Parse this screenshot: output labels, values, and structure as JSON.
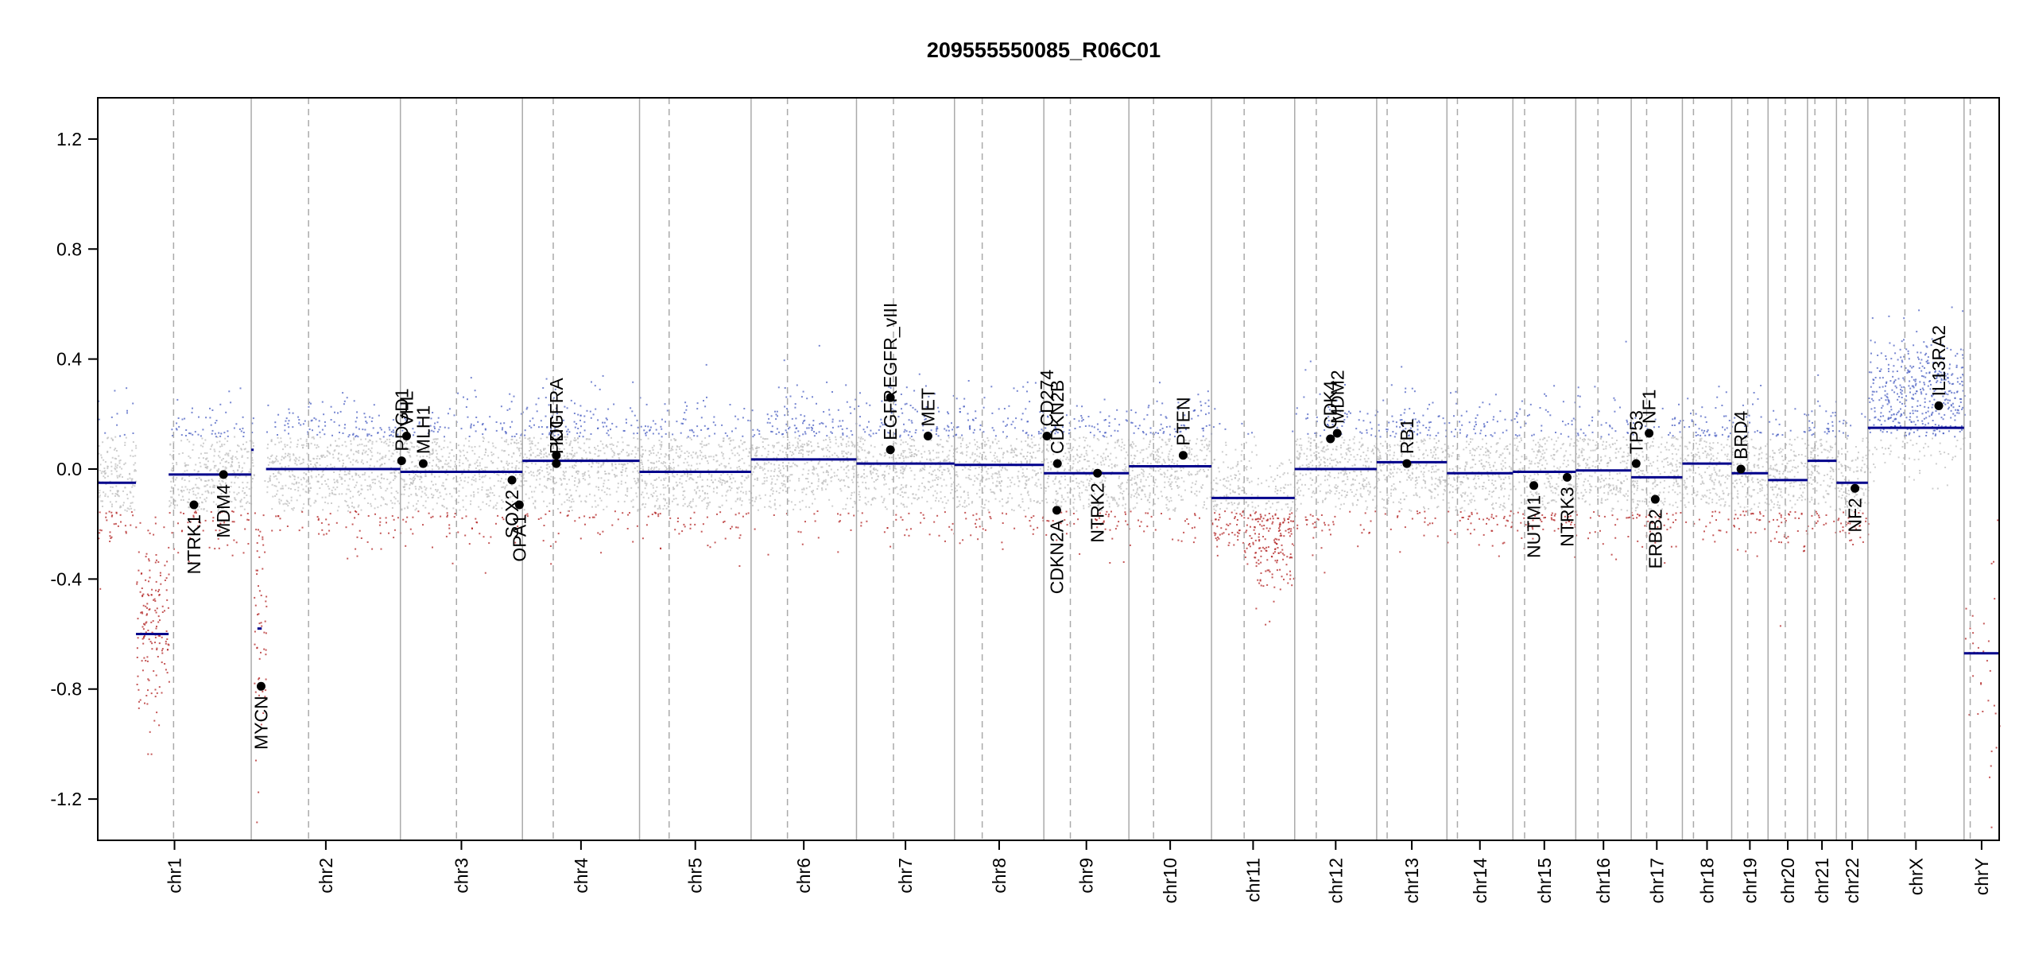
{
  "chart_data": {
    "type": "scatter",
    "title": "209555550085_R06C01",
    "xlabel": "",
    "ylabel": "",
    "ylim": [
      -1.35,
      1.35
    ],
    "yticks": [
      -1.2,
      -0.8,
      -0.4,
      0.0,
      0.4,
      0.8,
      1.2
    ],
    "ytick_labels": [
      "-1.2",
      "-0.8",
      "-0.4",
      "0.0",
      "0.4",
      "0.8",
      "1.2"
    ],
    "x_unit": "genome position (Mb)",
    "grid": false,
    "colors": {
      "gain": "#4a5fc1",
      "loss": "#b22222",
      "neutral": "#bdbdbd",
      "segment": "#00008b",
      "gene": "#000000",
      "boundary": "#aaaaaa"
    },
    "chromosomes": [
      {
        "name": "chr1",
        "length": 249,
        "centromere": 123
      },
      {
        "name": "chr2",
        "length": 242,
        "centromere": 93
      },
      {
        "name": "chr3",
        "length": 198,
        "centromere": 91
      },
      {
        "name": "chr4",
        "length": 190,
        "centromere": 50
      },
      {
        "name": "chr5",
        "length": 181,
        "centromere": 48
      },
      {
        "name": "chr6",
        "length": 171,
        "centromere": 59
      },
      {
        "name": "chr7",
        "length": 159,
        "centromere": 60
      },
      {
        "name": "chr8",
        "length": 145,
        "centromere": 45
      },
      {
        "name": "chr9",
        "length": 138,
        "centromere": 43
      },
      {
        "name": "chr10",
        "length": 134,
        "centromere": 40
      },
      {
        "name": "chr11",
        "length": 135,
        "centromere": 53
      },
      {
        "name": "chr12",
        "length": 133,
        "centromere": 35
      },
      {
        "name": "chr13",
        "length": 114,
        "centromere": 17
      },
      {
        "name": "chr14",
        "length": 107,
        "centromere": 17
      },
      {
        "name": "chr15",
        "length": 102,
        "centromere": 19
      },
      {
        "name": "chr16",
        "length": 90,
        "centromere": 36
      },
      {
        "name": "chr17",
        "length": 83,
        "centromere": 25
      },
      {
        "name": "chr18",
        "length": 80,
        "centromere": 18
      },
      {
        "name": "chr19",
        "length": 59,
        "centromere": 26
      },
      {
        "name": "chr20",
        "length": 64,
        "centromere": 28
      },
      {
        "name": "chr21",
        "length": 47,
        "centromere": 12
      },
      {
        "name": "chr22",
        "length": 51,
        "centromere": 15
      },
      {
        "name": "chrX",
        "length": 156,
        "centromere": 60
      },
      {
        "name": "chrY",
        "length": 57,
        "centromere": 10
      }
    ],
    "segments": [
      {
        "chr": "chr1",
        "start": 0,
        "end": 62,
        "value": -0.05
      },
      {
        "chr": "chr1",
        "start": 62,
        "end": 115,
        "value": -0.6
      },
      {
        "chr": "chr1",
        "start": 115,
        "end": 249,
        "value": -0.02
      },
      {
        "chr": "chr2",
        "start": 0,
        "end": 4,
        "value": 0.07
      },
      {
        "chr": "chr2",
        "start": 10,
        "end": 17,
        "value": -0.58
      },
      {
        "chr": "chr2",
        "start": 24,
        "end": 242,
        "value": 0.0
      },
      {
        "chr": "chr3",
        "start": 0,
        "end": 198,
        "value": -0.01
      },
      {
        "chr": "chr4",
        "start": 0,
        "end": 190,
        "value": 0.03
      },
      {
        "chr": "chr5",
        "start": 0,
        "end": 181,
        "value": -0.01
      },
      {
        "chr": "chr6",
        "start": 0,
        "end": 171,
        "value": 0.035
      },
      {
        "chr": "chr7",
        "start": 0,
        "end": 159,
        "value": 0.02
      },
      {
        "chr": "chr8",
        "start": 0,
        "end": 145,
        "value": 0.015
      },
      {
        "chr": "chr9",
        "start": 0,
        "end": 138,
        "value": -0.015
      },
      {
        "chr": "chr10",
        "start": 0,
        "end": 134,
        "value": 0.01
      },
      {
        "chr": "chr11",
        "start": 0,
        "end": 135,
        "value": -0.105
      },
      {
        "chr": "chr12",
        "start": 0,
        "end": 133,
        "value": 0.0
      },
      {
        "chr": "chr13",
        "start": 0,
        "end": 114,
        "value": 0.025
      },
      {
        "chr": "chr14",
        "start": 0,
        "end": 107,
        "value": -0.015
      },
      {
        "chr": "chr15",
        "start": 0,
        "end": 102,
        "value": -0.01
      },
      {
        "chr": "chr16",
        "start": 0,
        "end": 90,
        "value": -0.005
      },
      {
        "chr": "chr17",
        "start": 0,
        "end": 83,
        "value": -0.03
      },
      {
        "chr": "chr18",
        "start": 0,
        "end": 80,
        "value": 0.02
      },
      {
        "chr": "chr19",
        "start": 0,
        "end": 59,
        "value": -0.015
      },
      {
        "chr": "chr20",
        "start": 0,
        "end": 64,
        "value": -0.04
      },
      {
        "chr": "chr21",
        "start": 0,
        "end": 47,
        "value": 0.03
      },
      {
        "chr": "chr22",
        "start": 0,
        "end": 51,
        "value": -0.05
      },
      {
        "chr": "chrX",
        "start": 0,
        "end": 156,
        "value": 0.15
      },
      {
        "chr": "chrY",
        "start": 0,
        "end": 57,
        "value": -0.67
      }
    ],
    "genes": [
      {
        "name": "NTRK1",
        "chr": "chr1",
        "pos": 156,
        "value": -0.13,
        "label_side": "below"
      },
      {
        "name": "MDM4",
        "chr": "chr1",
        "pos": 204,
        "value": -0.02,
        "label_side": "below"
      },
      {
        "name": "MYCN",
        "chr": "chr2",
        "pos": 16,
        "value": -0.79,
        "label_side": "below"
      },
      {
        "name": "PDGD1",
        "chr": "chr3",
        "pos": 2,
        "value": 0.03,
        "label_side": "above"
      },
      {
        "name": "VHL",
        "chr": "chr3",
        "pos": 10,
        "value": 0.12,
        "label_side": "above"
      },
      {
        "name": "MLH1",
        "chr": "chr3",
        "pos": 37,
        "value": 0.02,
        "label_side": "above"
      },
      {
        "name": "SOX2",
        "chr": "chr3",
        "pos": 181,
        "value": -0.04,
        "label_side": "below"
      },
      {
        "name": "OPA1",
        "chr": "chr3",
        "pos": 193,
        "value": -0.13,
        "label_side": "below"
      },
      {
        "name": "KIT",
        "chr": "chr4",
        "pos": 55,
        "value": 0.05,
        "label_side": "above"
      },
      {
        "name": "PDGFRA",
        "chr": "chr4",
        "pos": 55,
        "value": 0.02,
        "label_side": "above"
      },
      {
        "name": "EGFR",
        "chr": "chr7",
        "pos": 55,
        "value": 0.07,
        "label_side": "above"
      },
      {
        "name": "EGFR_vIII",
        "chr": "chr7",
        "pos": 55,
        "value": 0.26,
        "label_side": "above"
      },
      {
        "name": "MET",
        "chr": "chr7",
        "pos": 116,
        "value": 0.12,
        "label_side": "above"
      },
      {
        "name": "CD274",
        "chr": "chr9",
        "pos": 5,
        "value": 0.12,
        "label_side": "above"
      },
      {
        "name": "CDKN2B",
        "chr": "chr9",
        "pos": 22,
        "value": 0.02,
        "label_side": "above"
      },
      {
        "name": "CDKN2A",
        "chr": "chr9",
        "pos": 21,
        "value": -0.15,
        "label_side": "below"
      },
      {
        "name": "NTRK2",
        "chr": "chr9",
        "pos": 87,
        "value": -0.015,
        "label_side": "below"
      },
      {
        "name": "PTEN",
        "chr": "chr10",
        "pos": 88,
        "value": 0.05,
        "label_side": "above"
      },
      {
        "name": "CDK4",
        "chr": "chr12",
        "pos": 58,
        "value": 0.11,
        "label_side": "above"
      },
      {
        "name": "MDM2",
        "chr": "chr12",
        "pos": 69,
        "value": 0.13,
        "label_side": "above"
      },
      {
        "name": "RB1",
        "chr": "chr13",
        "pos": 49,
        "value": 0.02,
        "label_side": "above"
      },
      {
        "name": "NUTM1",
        "chr": "chr15",
        "pos": 34,
        "value": -0.06,
        "label_side": "below"
      },
      {
        "name": "NTRK3",
        "chr": "chr15",
        "pos": 88,
        "value": -0.03,
        "label_side": "below"
      },
      {
        "name": "TP53",
        "chr": "chr17",
        "pos": 8,
        "value": 0.02,
        "label_side": "above"
      },
      {
        "name": "NF1",
        "chr": "chr17",
        "pos": 29,
        "value": 0.13,
        "label_side": "above"
      },
      {
        "name": "ERBB2",
        "chr": "chr17",
        "pos": 39,
        "value": -0.11,
        "label_side": "below"
      },
      {
        "name": "BRD4",
        "chr": "chr19",
        "pos": 15,
        "value": 0.0,
        "label_side": "above"
      },
      {
        "name": "NF2",
        "chr": "chr22",
        "pos": 30,
        "value": -0.07,
        "label_side": "below"
      },
      {
        "name": "IL13RA2",
        "chr": "chrX",
        "pos": 115,
        "value": 0.23,
        "label_side": "above"
      }
    ],
    "probe_profiles": [
      {
        "chr": "chr1",
        "start": 62,
        "end": 115,
        "mean": -0.6,
        "sd": 0.18
      },
      {
        "chr": "chr2",
        "start": 4,
        "end": 24,
        "mean": -0.55,
        "sd": 0.22
      },
      {
        "chr": "chr11",
        "start": 65,
        "end": 135,
        "mean": -0.2,
        "sd": 0.13
      },
      {
        "chr": "chrX",
        "start": 0,
        "end": 156,
        "mean": 0.25,
        "sd": 0.12
      },
      {
        "chr": "chrY",
        "start": 40,
        "end": 57,
        "mean": -0.8,
        "sd": 0.3
      }
    ]
  }
}
